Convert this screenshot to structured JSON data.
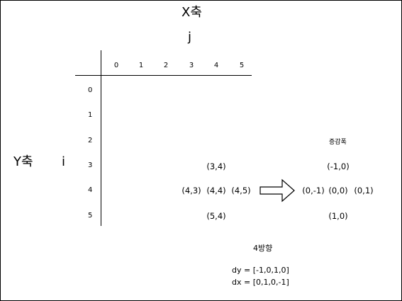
{
  "x_axis_title": "X축",
  "x_axis_var": "j",
  "y_axis_title": "Y축",
  "y_axis_var": "i",
  "col_ticks": [
    "0",
    "1",
    "2",
    "3",
    "4",
    "5"
  ],
  "row_ticks": [
    "0",
    "1",
    "2",
    "3",
    "4",
    "5"
  ],
  "grid_coords": {
    "up": "(3,4)",
    "left": "(4,3)",
    "center": "(4,4)",
    "right": "(4,5)",
    "down": "(5,4)"
  },
  "delta_title": "증감폭",
  "delta_coords": {
    "up": "(-1,0)",
    "left": "(0,-1)",
    "center": "(0,0)",
    "right": "(0,1)",
    "down": "(1,0)"
  },
  "direction_title": "4방향",
  "dy_line": "dy = [-1,0,1,0]",
  "dx_line": "dx = [0,1,0,-1]"
}
